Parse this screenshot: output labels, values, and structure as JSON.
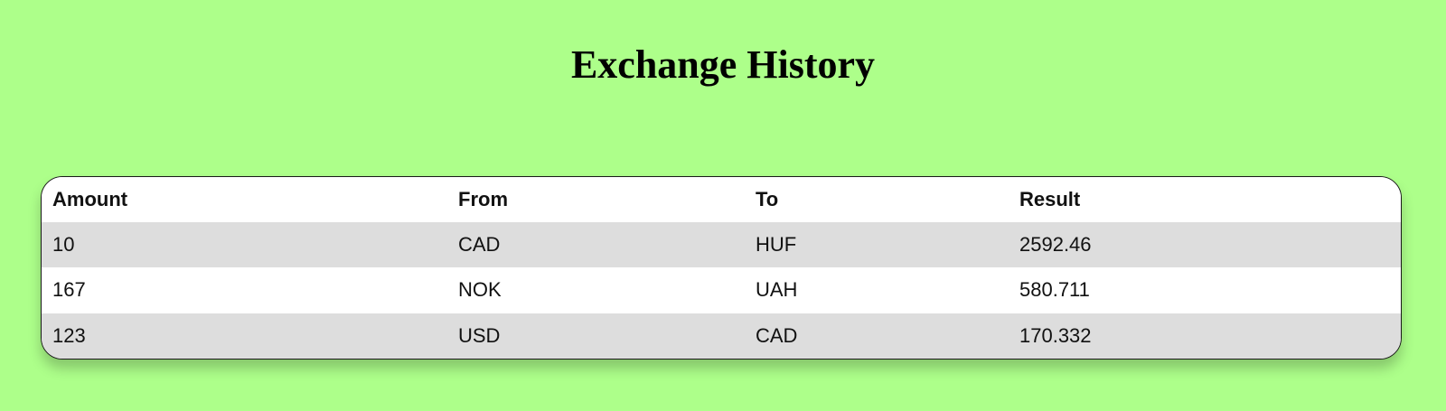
{
  "page": {
    "title": "Exchange History"
  },
  "table": {
    "headers": {
      "amount": "Amount",
      "from": "From",
      "to": "To",
      "result": "Result"
    },
    "rows": [
      {
        "amount": "10",
        "from": "CAD",
        "to": "HUF",
        "result": "2592.46"
      },
      {
        "amount": "167",
        "from": "NOK",
        "to": "UAH",
        "result": "580.711"
      },
      {
        "amount": "123",
        "from": "USD",
        "to": "CAD",
        "result": "170.332"
      }
    ]
  },
  "colors": {
    "background": "#adff8a",
    "row_stripe": "#dddddd",
    "header_bg": "#ffffff"
  }
}
